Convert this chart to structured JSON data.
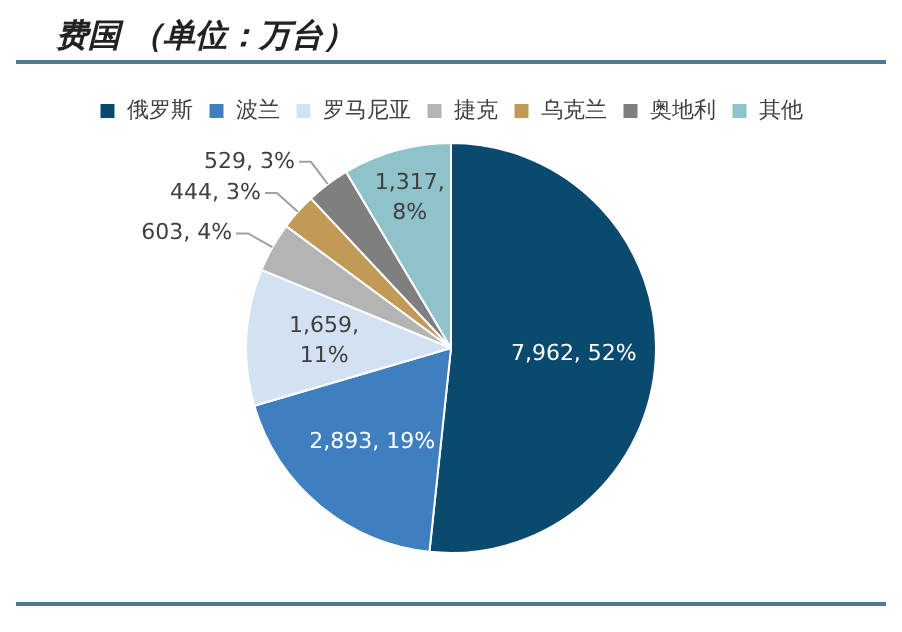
{
  "chart_data": {
    "type": "pie",
    "title": "费国 （单位：万台）",
    "categories": [
      "俄罗斯",
      "波兰",
      "罗马尼亚",
      "捷克",
      "乌克兰",
      "奥地利",
      "其他"
    ],
    "values": [
      7962,
      2893,
      1659,
      603,
      444,
      529,
      1317
    ],
    "colors": [
      "#0b4a6f",
      "#3f7fc0",
      "#d3e2f2",
      "#b4b4b4",
      "#c09a56",
      "#7f7f7f",
      "#8fc2c9"
    ],
    "value_labels": [
      "7,962, 52%",
      "2,893, 19%",
      "1,659, 11%",
      "603, 4%",
      "444, 3%",
      "529, 3%",
      "1,317, 8%"
    ],
    "legend": "top"
  }
}
